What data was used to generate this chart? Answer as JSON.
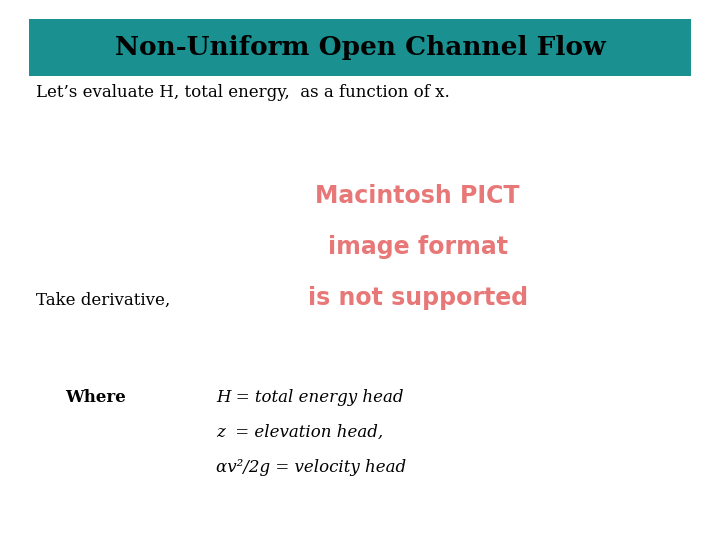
{
  "title": "Non-Uniform Open Channel Flow",
  "title_bg_color": "#1a9090",
  "title_text_color": "#000000",
  "bg_color": "#ffffff",
  "body_text_color": "#000000",
  "pict_text_color": "#e87878",
  "subtitle": "Let’s evaluate H, total energy,  as a function of x.",
  "take_deriv_label": "Take derivative,",
  "pict_line1": "Macintosh PICT",
  "pict_line2": "image format",
  "pict_line3": "is not supported",
  "where_label": "Where",
  "where_line1": "H = total energy head",
  "where_line2": "z  = elevation head,",
  "where_line3": "αv²/2g = velocity head"
}
